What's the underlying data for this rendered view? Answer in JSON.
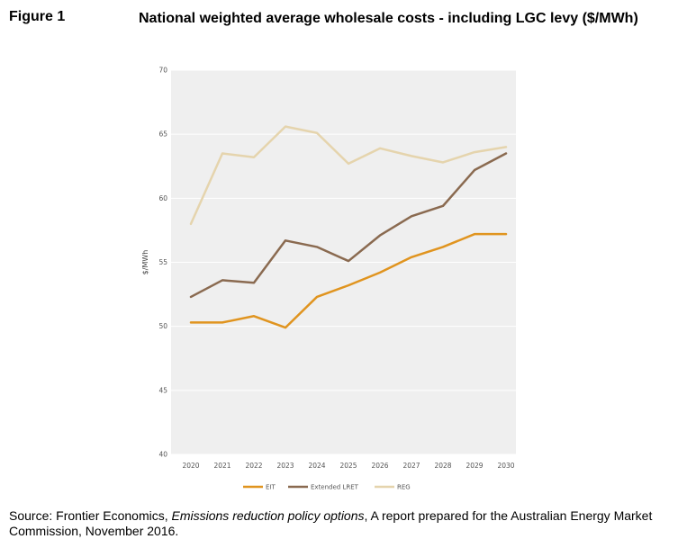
{
  "figure": {
    "label": "Figure 1",
    "title": "National weighted average wholesale costs - including LGC levy ($/MWh)"
  },
  "source": {
    "prefix": "Source: Frontier Economics, ",
    "italic": "Emissions reduction policy options",
    "suffix": ", A report prepared for the Australian Energy Market Commission, November 2016."
  },
  "chart_data": {
    "type": "line",
    "title": "",
    "xlabel": "",
    "ylabel": "$/MWh",
    "categories": [
      "2020",
      "2021",
      "2022",
      "2023",
      "2024",
      "2025",
      "2026",
      "2027",
      "2028",
      "2029",
      "2030"
    ],
    "ylim": [
      40,
      70
    ],
    "yticks": [
      40,
      45,
      50,
      55,
      60,
      65,
      70
    ],
    "grid": true,
    "background": "#efefef",
    "legend_position": "bottom",
    "series": [
      {
        "name": "EIT",
        "color": "#e0941f",
        "values": [
          50.3,
          50.3,
          50.8,
          49.9,
          52.3,
          53.2,
          54.2,
          55.4,
          56.2,
          57.2,
          57.2
        ]
      },
      {
        "name": "Extended LRET",
        "color": "#8a6a50",
        "values": [
          52.3,
          53.6,
          53.4,
          56.7,
          56.2,
          55.1,
          57.1,
          58.6,
          59.4,
          62.2,
          63.5
        ]
      },
      {
        "name": "REG",
        "color": "#e5d4ad",
        "values": [
          58.0,
          63.5,
          63.2,
          65.6,
          65.1,
          62.7,
          63.9,
          63.3,
          62.8,
          63.6,
          64.0
        ]
      }
    ]
  }
}
